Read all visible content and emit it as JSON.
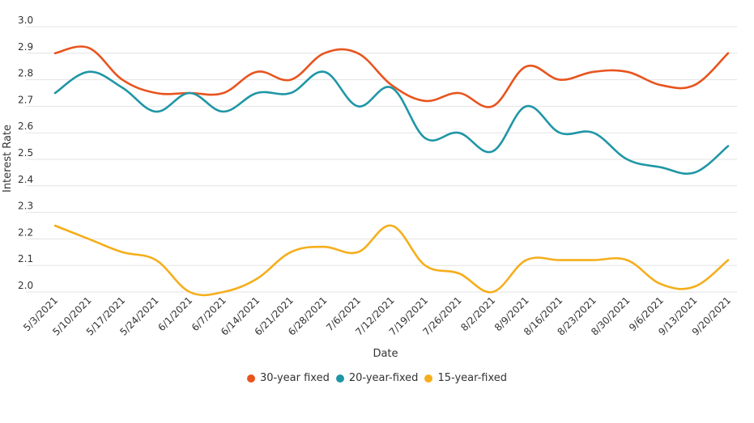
{
  "chart_data": {
    "type": "line",
    "xlabel": "Date",
    "ylabel": "Interest Rate",
    "ylim": [
      2.0,
      3.0
    ],
    "yticks": [
      "2.0",
      "2.1",
      "2.2",
      "2.3",
      "2.4",
      "2.5",
      "2.6",
      "2.7",
      "2.8",
      "2.9",
      "3.0"
    ],
    "grid": true,
    "legend_position": "bottom",
    "categories": [
      "5/3/2021",
      "5/10/2021",
      "5/17/2021",
      "5/24/2021",
      "6/1/2021",
      "6/7/2021",
      "6/14/2021",
      "6/21/2021",
      "6/28/2021",
      "7/6/2021",
      "7/12/2021",
      "7/19/2021",
      "7/26/2021",
      "8/2/2021",
      "8/9/2021",
      "8/16/2021",
      "8/23/2021",
      "8/30/2021",
      "9/6/2021",
      "9/13/2021",
      "9/20/2021"
    ],
    "series": [
      {
        "name": "30-year fixed",
        "color": "#e8541e",
        "values": [
          2.9,
          2.92,
          2.8,
          2.75,
          2.75,
          2.75,
          2.83,
          2.8,
          2.9,
          2.9,
          2.78,
          2.72,
          2.75,
          2.7,
          2.85,
          2.8,
          2.83,
          2.83,
          2.78,
          2.78,
          2.9
        ]
      },
      {
        "name": "20-year-fixed",
        "color": "#1f96a6",
        "values": [
          2.75,
          2.83,
          2.77,
          2.68,
          2.75,
          2.68,
          2.75,
          2.75,
          2.83,
          2.7,
          2.77,
          2.58,
          2.6,
          2.53,
          2.7,
          2.6,
          2.6,
          2.5,
          2.47,
          2.45,
          2.55
        ]
      },
      {
        "name": "15-year-fixed",
        "color": "#f5ae1b",
        "values": [
          2.25,
          2.2,
          2.15,
          2.12,
          2.0,
          2.0,
          2.05,
          2.15,
          2.17,
          2.15,
          2.25,
          2.1,
          2.07,
          2.0,
          2.12,
          2.12,
          2.12,
          2.12,
          2.03,
          2.02,
          2.12
        ]
      }
    ]
  }
}
